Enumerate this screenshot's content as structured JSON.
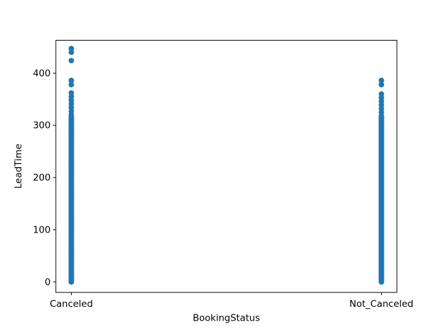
{
  "figure": {
    "background": "#ffffff",
    "spine_color": "#000000",
    "text_color": "#000000"
  },
  "chart_data": {
    "type": "scatter",
    "title": "",
    "xlabel": "BookingStatus",
    "ylabel": "LeadTime",
    "categories": [
      "Canceled",
      "Not_Canceled"
    ],
    "x_positions": [
      0,
      1
    ],
    "xlim": [
      -0.05,
      1.05
    ],
    "ylim": [
      -20,
      463
    ],
    "yticks": [
      0,
      100,
      200,
      300,
      400
    ],
    "grid": false,
    "legend_visible": false,
    "marker": {
      "color": "#1f77b4",
      "radius_px": 4
    },
    "series": [
      {
        "name": "Canceled",
        "isolated_points": [
          447,
          440,
          424,
          386,
          378
        ],
        "sparse_points": [
          362,
          355,
          348,
          341,
          334,
          327,
          320
        ],
        "dense_range": [
          0,
          316
        ],
        "dense_step": 2
      },
      {
        "name": "Not_Canceled",
        "isolated_points": [
          386,
          378
        ],
        "sparse_points": [
          360,
          353,
          346,
          339,
          332,
          325
        ],
        "dense_range": [
          0,
          318
        ],
        "dense_step": 2
      }
    ]
  }
}
